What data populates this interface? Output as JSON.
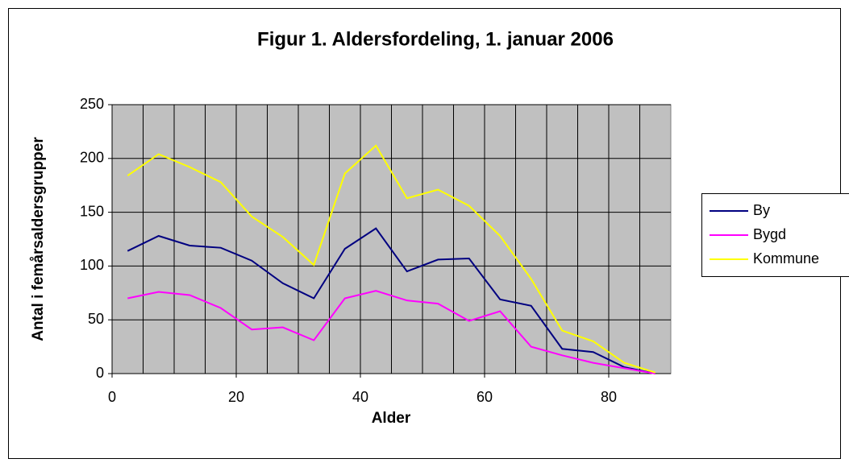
{
  "chart_data": {
    "type": "line",
    "title": "Figur 1. Aldersfordeling, 1. januar 2006",
    "x_label": "Alder",
    "y_label": "Antal i femårsaldersgrupper",
    "x": [
      2.5,
      7.5,
      12.5,
      17.5,
      22.5,
      27.5,
      32.5,
      37.5,
      42.5,
      47.5,
      52.5,
      57.5,
      62.5,
      67.5,
      72.5,
      77.5,
      82.5,
      87.5
    ],
    "series": [
      {
        "name": "By",
        "color": "#000080",
        "values": [
          114,
          128,
          119,
          117,
          105,
          84,
          70,
          116,
          135,
          95,
          106,
          107,
          69,
          63,
          23,
          20,
          6,
          0
        ]
      },
      {
        "name": "Bygd",
        "color": "#ff00ff",
        "values": [
          70,
          76,
          73,
          61,
          41,
          43,
          31,
          70,
          77,
          68,
          65,
          49,
          58,
          25,
          17,
          10,
          5,
          0
        ]
      },
      {
        "name": "Kommune",
        "color": "#ffff00",
        "values": [
          184,
          204,
          192,
          178,
          146,
          127,
          101,
          186,
          212,
          163,
          171,
          156,
          128,
          88,
          40,
          30,
          10,
          1
        ]
      }
    ],
    "xlim": [
      0,
      90
    ],
    "xticks": [
      0,
      20,
      40,
      60,
      80
    ],
    "xgrid": [
      5,
      10,
      15,
      20,
      25,
      30,
      35,
      40,
      45,
      50,
      55,
      60,
      65,
      70,
      75,
      80,
      85
    ],
    "ylim": [
      0,
      250
    ],
    "yticks": [
      0,
      50,
      100,
      150,
      200,
      250
    ],
    "grid": true,
    "plot_background": "#c0c0c0",
    "legend": "right"
  }
}
